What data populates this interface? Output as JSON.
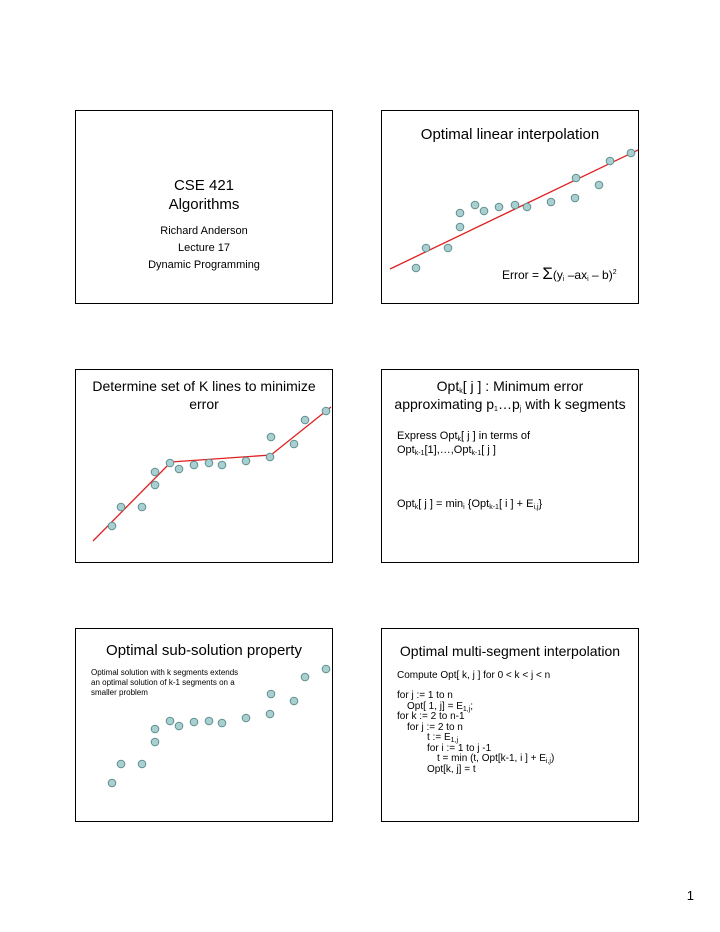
{
  "slide1": {
    "title_line1": "CSE 421",
    "title_line2": "Algorithms",
    "author": "Richard Anderson",
    "lecture": "Lecture 17",
    "topic": "Dynamic Programming"
  },
  "slide2": {
    "title": "Optimal linear interpolation",
    "error_prefix": "Error = ",
    "sigma": "Σ",
    "formula_a": "(y",
    "formula_i1": "i",
    "formula_b": " –ax",
    "formula_i2": "i",
    "formula_c": " – b)",
    "formula_sq": "2"
  },
  "slide3": {
    "title_line1": "Determine set of K lines to minimize",
    "title_line2": "error"
  },
  "slide4": {
    "title_a": "Opt",
    "title_k": "k",
    "title_b": "[ j ] : Minimum error",
    "title_c": "approximating p",
    "title_1": "1",
    "title_d": "…p",
    "title_j": "j",
    "title_e": " with k segments",
    "expr_a": "Express Opt",
    "expr_k": "k",
    "expr_b": "[ j ] in terms of",
    "expr_c": "Opt",
    "expr_k1a": "k-1",
    "expr_d": "[1],…,Opt",
    "expr_k1b": "k-1",
    "expr_e": "[ j ]",
    "rec_a": "Opt",
    "rec_k": "k",
    "rec_b": "[ j ] = min",
    "rec_i": "i",
    "rec_c": " {Opt",
    "rec_k1": "k-1",
    "rec_d": "[ i ] + E",
    "rec_ij": "i,j",
    "rec_e": "}"
  },
  "slide5": {
    "title": "Optimal sub-solution property",
    "text_line1": "Optimal solution with k segments extends",
    "text_line2": "an optimal solution of k-1 segments on a",
    "text_line3": "smaller problem"
  },
  "slide6": {
    "title": "Optimal multi-segment interpolation",
    "compute": "Compute Opt[ k, j ] for 0 < k < j < n",
    "l1": "for j := 1 to n",
    "l2a": "Opt[ 1, j] = E",
    "l2s": "1,j",
    "l2b": ";",
    "l3": "for k := 2 to n-1",
    "l4": "for j := 2 to n",
    "l5a": "t := E",
    "l5s": "1,j",
    "l6": "for i := 1 to j -1",
    "l7a": "t = min (t, Opt[k-1, i ] + E",
    "l7s": "i,j",
    "l7b": ")",
    "l8": "Opt[k, j] = t"
  },
  "page_number": "1",
  "colors": {
    "point_fill": "#a9cfd0",
    "point_stroke": "#5f8f90",
    "line": "#e02020"
  }
}
